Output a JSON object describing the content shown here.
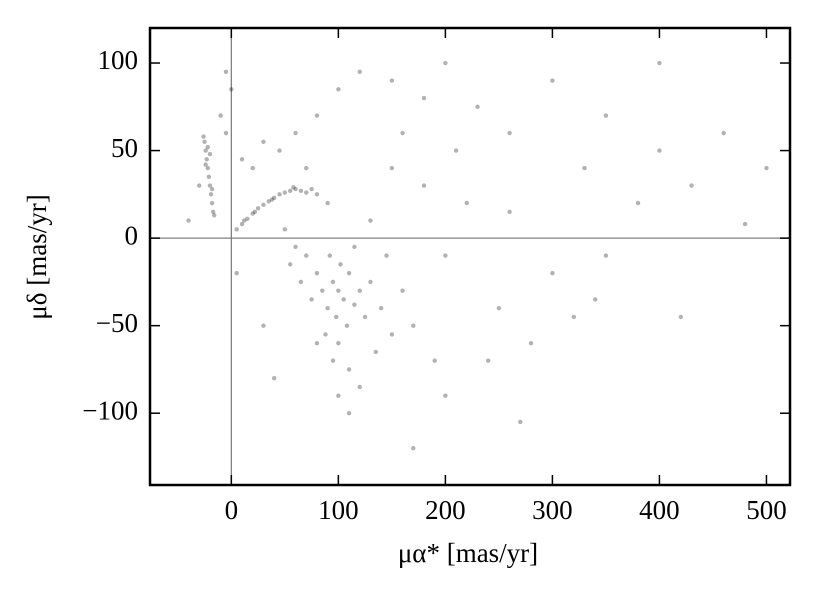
{
  "chart_data": {
    "type": "scatter",
    "xlabel": "μα* [mas/yr]",
    "ylabel": "μδ [mas/yr]",
    "xlim": [
      -76,
      522
    ],
    "ylim": [
      -141,
      120
    ],
    "xticks": [
      0,
      100,
      200,
      300,
      400,
      500
    ],
    "yticks": [
      {
        "value": -100,
        "label": "−100"
      },
      {
        "value": -50,
        "label": "−50"
      },
      0,
      50,
      100
    ],
    "hlines": [
      0
    ],
    "vlines": [
      0
    ],
    "refline_color": "#808080",
    "color": "#000000",
    "alpha": 0.3,
    "x": [
      100,
      95,
      105,
      90,
      110,
      85,
      115,
      98,
      102,
      80,
      120,
      92,
      108,
      75,
      125,
      88,
      130,
      70,
      100,
      140,
      60,
      115,
      95,
      150,
      65,
      135,
      110,
      80,
      160,
      55,
      170,
      120,
      145,
      50,
      100,
      -25,
      -24,
      -23,
      -22,
      -21,
      -20,
      -19,
      -18,
      -17,
      -26,
      -22,
      -20,
      -24,
      -18,
      -16,
      5,
      10,
      15,
      20,
      25,
      30,
      35,
      40,
      45,
      50,
      55,
      60,
      65,
      70,
      75,
      80,
      12,
      22,
      38,
      58,
      -10,
      0,
      -5,
      10,
      20,
      30,
      45,
      60,
      80,
      100,
      120,
      150,
      180,
      200,
      230,
      260,
      300,
      330,
      350,
      380,
      400,
      430,
      460,
      480,
      500,
      300,
      250,
      280,
      200,
      220,
      180,
      150,
      130,
      160,
      240,
      270,
      320,
      200,
      190,
      350,
      420,
      -30,
      -40,
      -5,
      5,
      30,
      40,
      170,
      110,
      260,
      400,
      340,
      210,
      90,
      70
    ],
    "y": [
      -30,
      -25,
      -35,
      -40,
      -20,
      -30,
      -38,
      -45,
      -15,
      -20,
      -30,
      -10,
      -50,
      -35,
      -45,
      -55,
      -25,
      -10,
      -60,
      -40,
      -5,
      -5,
      -70,
      -55,
      -25,
      -65,
      -75,
      -60,
      -30,
      -15,
      -50,
      -85,
      -10,
      5,
      -90,
      55,
      50,
      45,
      40,
      35,
      30,
      25,
      20,
      15,
      58,
      52,
      48,
      42,
      28,
      13,
      5,
      8,
      11,
      14,
      17,
      19,
      21,
      23,
      25,
      26,
      27,
      28,
      27,
      26,
      28,
      25,
      10,
      15,
      22,
      29,
      70,
      85,
      60,
      45,
      40,
      55,
      50,
      60,
      70,
      85,
      95,
      90,
      80,
      100,
      75,
      60,
      90,
      40,
      70,
      20,
      50,
      30,
      60,
      8,
      40,
      -20,
      -40,
      -60,
      -10,
      20,
      30,
      40,
      10,
      60,
      -70,
      -105,
      -45,
      -90,
      -70,
      -10,
      -45,
      30,
      10,
      95,
      -20,
      -50,
      -80,
      -120,
      -100,
      15,
      100,
      -35,
      50,
      20,
      40
    ]
  }
}
